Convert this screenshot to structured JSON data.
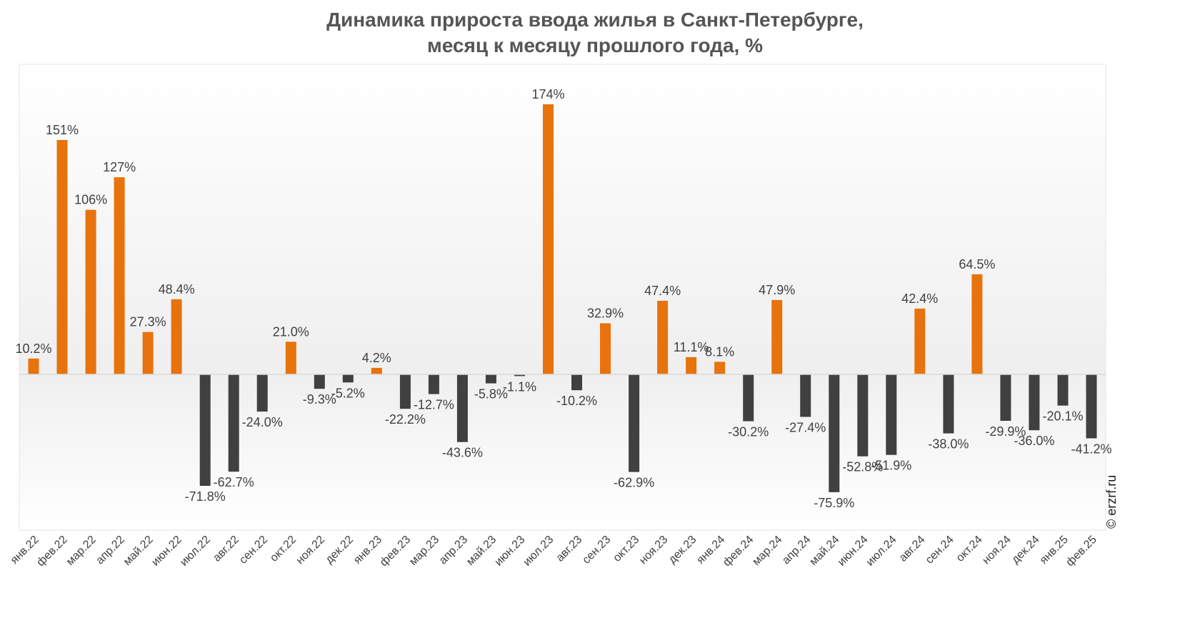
{
  "chart_data": {
    "type": "bar",
    "title": [
      "Динамика прироста ввода жилья в Санкт-Петербурге,",
      "месяц к месяцу прошлого года, %"
    ],
    "xlabel": "",
    "ylabel": "",
    "categories": [
      "янв.22",
      "фев.22",
      "мар.22",
      "апр.22",
      "май.22",
      "июн.22",
      "июл.22",
      "авг.22",
      "сен.22",
      "окт.22",
      "ноя.22",
      "дек.22",
      "янв.23",
      "фев.23",
      "мар.23",
      "апр.23",
      "май.23",
      "июн.23",
      "июл.23",
      "авг.23",
      "сен.23",
      "окт.23",
      "ноя.23",
      "дек.23",
      "янв.24",
      "фев.24",
      "мар.24",
      "апр.24",
      "май.24",
      "июн.24",
      "июл.24",
      "авг.24",
      "сен.24",
      "окт.24",
      "ноя.24",
      "дек.24",
      "янв.25",
      "фев.25"
    ],
    "values": [
      10.2,
      151,
      106,
      127,
      27.3,
      48.4,
      -71.8,
      -62.7,
      -24.0,
      21.0,
      -9.3,
      -5.2,
      4.2,
      -22.2,
      -12.7,
      -43.6,
      -5.8,
      -1.1,
      174,
      -10.2,
      32.9,
      -62.9,
      47.4,
      11.1,
      8.1,
      -30.2,
      47.9,
      -27.4,
      -75.9,
      -52.8,
      -51.9,
      42.4,
      -38.0,
      64.5,
      -29.9,
      -36.0,
      -20.1,
      -41.2
    ],
    "data_labels": [
      "10.2%",
      "151%",
      "106%",
      "127%",
      "27.3%",
      "48.4%",
      "-71.8%",
      "-62.7%",
      "-24.0%",
      "21.0%",
      "-9.3%",
      "-5.2%",
      "4.2%",
      "-22.2%",
      "-12.7%",
      "-43.6%",
      "-5.8%",
      "-1.1%",
      "174%",
      "-10.2%",
      "32.9%",
      "-62.9%",
      "47.4%",
      "11.1%",
      "8.1%",
      "-30.2%",
      "47.9%",
      "-27.4%",
      "-75.9%",
      "-52.8%",
      "-51.9%",
      "42.4%",
      "-38.0%",
      "64.5%",
      "-29.9%",
      "-36.0%",
      "-20.1%",
      "-41.2%"
    ],
    "ylim": [
      -100,
      200
    ],
    "grid": false,
    "colors": {
      "positive": "#E8720C",
      "negative": "#404040",
      "axis": "#d9d9d9",
      "frame": "#e5e5e5"
    }
  },
  "watermark": "© erzrf.ru"
}
